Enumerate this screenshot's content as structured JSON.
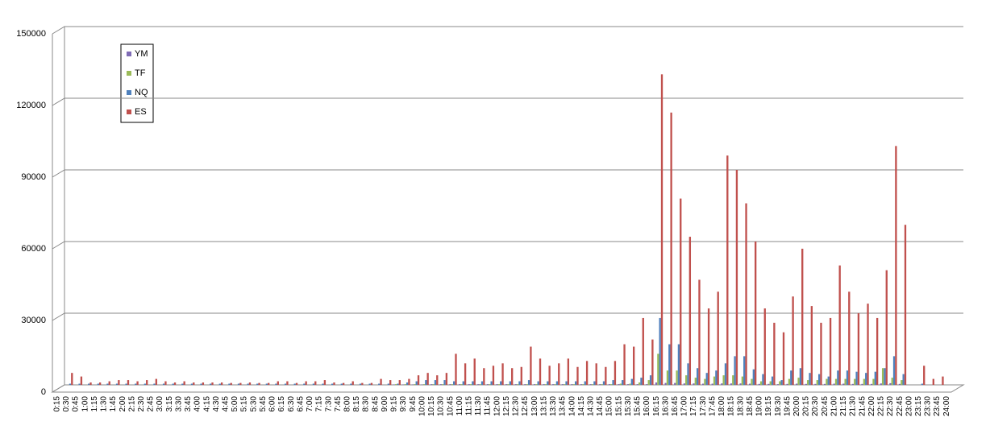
{
  "chart_data": {
    "type": "bar",
    "categories": [
      "0:15",
      "0:30",
      "0:45",
      "1:00",
      "1:15",
      "1:30",
      "1:45",
      "2:00",
      "2:15",
      "2:30",
      "2:45",
      "3:00",
      "3:15",
      "3:30",
      "3:45",
      "4:00",
      "4:15",
      "4:30",
      "4:45",
      "5:00",
      "5:15",
      "5:30",
      "5:45",
      "6:00",
      "6:15",
      "6:30",
      "6:45",
      "7:00",
      "7:15",
      "7:30",
      "7:45",
      "8:00",
      "8:15",
      "8:30",
      "8:45",
      "9:00",
      "9:15",
      "9:30",
      "9:45",
      "10:00",
      "10:15",
      "10:30",
      "10:45",
      "11:00",
      "11:15",
      "11:30",
      "11:45",
      "12:00",
      "12:15",
      "12:30",
      "12:45",
      "13:00",
      "13:15",
      "13:30",
      "13:45",
      "14:00",
      "14:15",
      "14:30",
      "14:45",
      "15:00",
      "15:15",
      "15:30",
      "15:45",
      "16:00",
      "16:15",
      "16:30",
      "16:45",
      "17:00",
      "17:15",
      "17:30",
      "17:45",
      "18:00",
      "18:15",
      "18:30",
      "18:45",
      "19:00",
      "19:15",
      "19:30",
      "19:45",
      "20:00",
      "20:15",
      "20:30",
      "20:45",
      "21:00",
      "21:15",
      "21:30",
      "21:45",
      "22:00",
      "22:15",
      "22:30",
      "22:45",
      "23:00",
      "23:15",
      "23:30",
      "23:45",
      "24:00"
    ],
    "series": [
      {
        "name": "YM",
        "color": "#7f6bb5",
        "values": [
          0,
          0,
          0,
          0,
          0,
          0,
          0,
          0,
          0,
          0,
          0,
          0,
          0,
          0,
          0,
          0,
          0,
          0,
          0,
          0,
          0,
          0,
          0,
          0,
          0,
          0,
          0,
          0,
          0,
          0,
          0,
          0,
          0,
          0,
          0,
          200,
          200,
          200,
          200,
          300,
          300,
          300,
          300,
          300,
          300,
          300,
          300,
          300,
          300,
          300,
          300,
          300,
          300,
          300,
          300,
          300,
          300,
          300,
          300,
          300,
          300,
          300,
          300,
          1000,
          800,
          800,
          600,
          600,
          500,
          500,
          600,
          600,
          600,
          500,
          400,
          400,
          300,
          400,
          500,
          400,
          400,
          400,
          500,
          500,
          400,
          400,
          400,
          600,
          700,
          400,
          0,
          0,
          0,
          0,
          0,
          0
        ]
      },
      {
        "name": "TF",
        "color": "#9bbb59",
        "values": [
          0,
          0,
          0,
          0,
          0,
          0,
          0,
          0,
          0,
          0,
          0,
          0,
          0,
          0,
          0,
          0,
          0,
          0,
          0,
          0,
          0,
          0,
          0,
          0,
          0,
          0,
          0,
          0,
          0,
          0,
          0,
          0,
          0,
          0,
          0,
          300,
          300,
          300,
          300,
          300,
          300,
          300,
          300,
          300,
          300,
          300,
          300,
          300,
          300,
          300,
          300,
          300,
          300,
          300,
          300,
          300,
          300,
          300,
          300,
          500,
          500,
          1000,
          2000,
          13000,
          6000,
          6000,
          4000,
          3000,
          2500,
          3500,
          4000,
          4000,
          3500,
          2500,
          1500,
          1500,
          1500,
          2500,
          3000,
          2000,
          2000,
          2500,
          2500,
          2500,
          2500,
          2500,
          2500,
          7000,
          3000,
          2000,
          0,
          0,
          0,
          0,
          0,
          0
        ]
      },
      {
        "name": "NQ",
        "color": "#4f81bd",
        "values": [
          500,
          500,
          500,
          500,
          500,
          500,
          500,
          500,
          500,
          500,
          500,
          500,
          500,
          500,
          500,
          500,
          500,
          500,
          500,
          500,
          500,
          500,
          500,
          500,
          500,
          500,
          500,
          500,
          500,
          500,
          500,
          500,
          500,
          500,
          500,
          500,
          1000,
          1500,
          2000,
          2000,
          2000,
          1500,
          1500,
          1500,
          1500,
          1500,
          1500,
          1500,
          1500,
          2000,
          1500,
          1500,
          1500,
          1500,
          1500,
          1500,
          1500,
          1500,
          2000,
          2000,
          2500,
          3000,
          4000,
          28000,
          17000,
          17000,
          9000,
          7000,
          5000,
          6000,
          9000,
          12000,
          12000,
          6500,
          4500,
          3500,
          2000,
          6000,
          7000,
          5000,
          4500,
          3500,
          6000,
          6000,
          5500,
          5000,
          5500,
          7000,
          12000,
          4500,
          0,
          500,
          0,
          0,
          0,
          0
        ]
      },
      {
        "name": "ES",
        "color": "#c0504d",
        "values": [
          5000,
          3500,
          1000,
          1000,
          1500,
          2000,
          2000,
          1500,
          2000,
          2500,
          1500,
          1000,
          1500,
          1000,
          1000,
          1000,
          1000,
          800,
          800,
          1000,
          800,
          800,
          1500,
          1500,
          800,
          1500,
          1500,
          2000,
          1000,
          800,
          1500,
          800,
          800,
          2500,
          2000,
          2000,
          2500,
          4000,
          5000,
          4000,
          5000,
          13000,
          9000,
          11000,
          7000,
          8000,
          9000,
          7000,
          7500,
          16000,
          11000,
          8000,
          9000,
          11000,
          7500,
          10000,
          9000,
          7500,
          10000,
          17000,
          16000,
          28000,
          19000,
          130000,
          114000,
          78000,
          62000,
          44000,
          32000,
          39000,
          96000,
          90000,
          76000,
          60000,
          32000,
          26000,
          22000,
          37000,
          57000,
          33000,
          26000,
          28000,
          50000,
          39000,
          30000,
          34000,
          28000,
          48000,
          100000,
          67000,
          0,
          8000,
          2500,
          3500,
          0,
          0
        ]
      }
    ],
    "ylim": [
      0,
      150000
    ],
    "yticks": [
      0,
      30000,
      60000,
      90000,
      120000,
      150000
    ],
    "grid": true,
    "legend": "top-left"
  }
}
